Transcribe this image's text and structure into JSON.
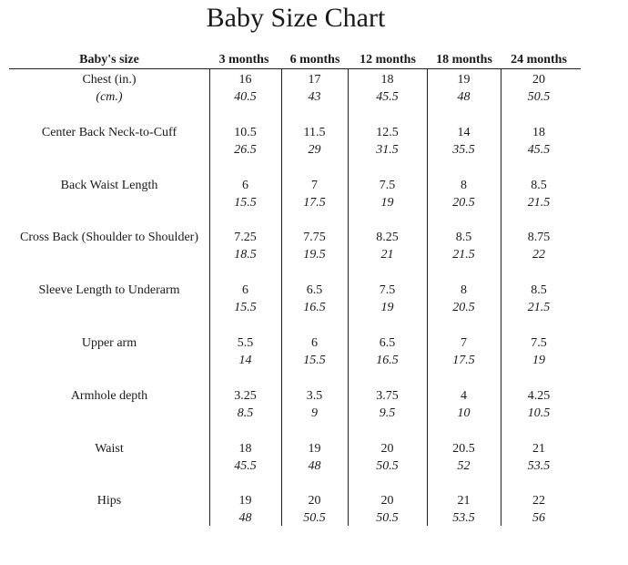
{
  "title": "Baby Size Chart",
  "header": {
    "label": "Baby's size",
    "sizes": [
      "3 months",
      "6 months",
      "12 months",
      "18 months",
      "24 months"
    ]
  },
  "rows": [
    {
      "label": "Chest (in.)",
      "sublabel": "(cm.)",
      "inch": [
        "16",
        "17",
        "18",
        "19",
        "20"
      ],
      "cm": [
        "40.5",
        "43",
        "45.5",
        "48",
        "50.5"
      ]
    },
    {
      "label": "Center Back Neck-to-Cuff",
      "sublabel": "",
      "inch": [
        "10.5",
        "11.5",
        "12.5",
        "14",
        "18"
      ],
      "cm": [
        "26.5",
        "29",
        "31.5",
        "35.5",
        "45.5"
      ]
    },
    {
      "label": "Back Waist Length",
      "sublabel": "",
      "inch": [
        "6",
        "7",
        "7.5",
        "8",
        "8.5"
      ],
      "cm": [
        "15.5",
        "17.5",
        "19",
        "20.5",
        "21.5"
      ]
    },
    {
      "label": "Cross Back (Shoulder to Shoulder)",
      "sublabel": "",
      "inch": [
        "7.25",
        "7.75",
        "8.25",
        "8.5",
        "8.75"
      ],
      "cm": [
        "18.5",
        "19.5",
        "21",
        "21.5",
        "22"
      ]
    },
    {
      "label": "Sleeve Length to Underarm",
      "sublabel": "",
      "inch": [
        "6",
        "6.5",
        "7.5",
        "8",
        "8.5"
      ],
      "cm": [
        "15.5",
        "16.5",
        "19",
        "20.5",
        "21.5"
      ]
    },
    {
      "label": "Upper arm",
      "sublabel": "",
      "inch": [
        "5.5",
        "6",
        "6.5",
        "7",
        "7.5"
      ],
      "cm": [
        "14",
        "15.5",
        "16.5",
        "17.5",
        "19"
      ]
    },
    {
      "label": "Armhole depth",
      "sublabel": "",
      "inch": [
        "3.25",
        "3.5",
        "3.75",
        "4",
        "4.25"
      ],
      "cm": [
        "8.5",
        "9",
        "9.5",
        "10",
        "10.5"
      ]
    },
    {
      "label": "Waist",
      "sublabel": "",
      "inch": [
        "18",
        "19",
        "20",
        "20.5",
        "21"
      ],
      "cm": [
        "45.5",
        "48",
        "50.5",
        "52",
        "53.5"
      ]
    },
    {
      "label": "Hips",
      "sublabel": "",
      "inch": [
        "19",
        "20",
        "20",
        "21",
        "22"
      ],
      "cm": [
        "48",
        "50.5",
        "50.5",
        "53.5",
        "56"
      ]
    }
  ]
}
